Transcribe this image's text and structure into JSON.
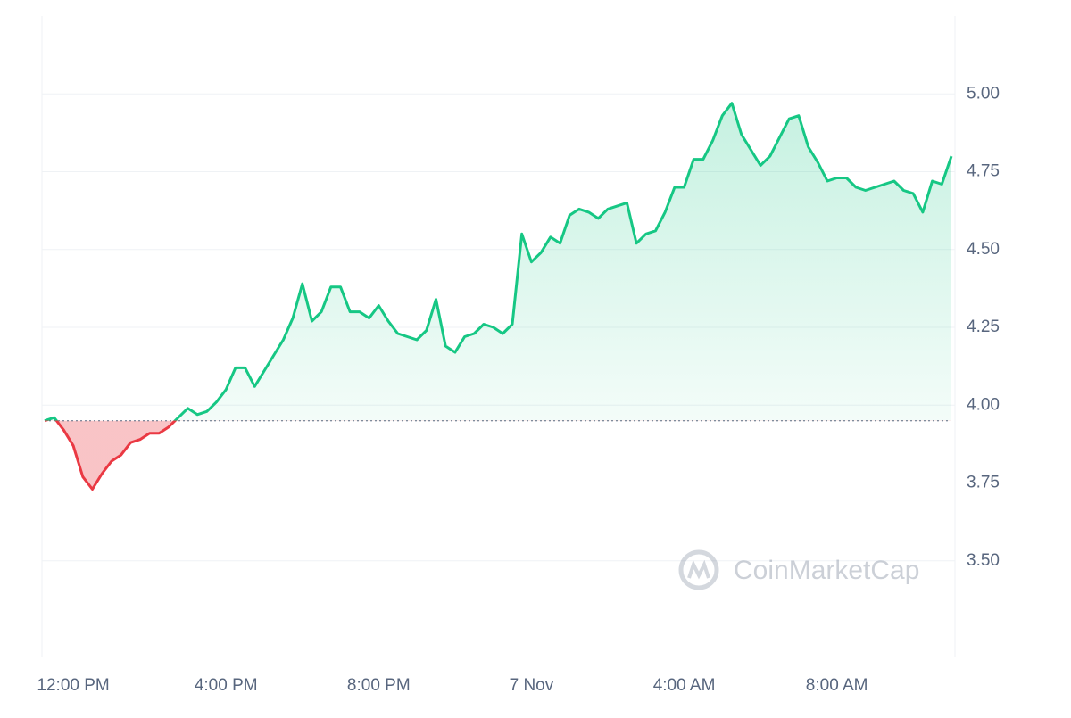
{
  "chart_data": {
    "type": "line",
    "watermark": "CoinMarketCap",
    "categories": [
      null,
      null,
      null,
      "12:00 PM",
      null,
      null,
      null,
      null,
      null,
      null,
      null,
      null,
      null,
      null,
      null,
      null,
      null,
      null,
      null,
      "4:00 PM",
      null,
      null,
      null,
      null,
      null,
      null,
      null,
      null,
      null,
      null,
      null,
      null,
      null,
      null,
      null,
      "8:00 PM",
      null,
      null,
      null,
      null,
      null,
      null,
      null,
      null,
      null,
      null,
      null,
      null,
      null,
      null,
      null,
      "7 Nov",
      null,
      null,
      null,
      null,
      null,
      null,
      null,
      null,
      null,
      null,
      null,
      null,
      null,
      null,
      null,
      "4:00 AM",
      null,
      null,
      null,
      null,
      null,
      null,
      null,
      null,
      null,
      null,
      null,
      null,
      null,
      null,
      null,
      "8:00 AM",
      null,
      null,
      null,
      null,
      null,
      null,
      null,
      null,
      null,
      null,
      null,
      null
    ],
    "values": [
      3.95,
      3.96,
      3.92,
      3.87,
      3.77,
      3.73,
      3.78,
      3.82,
      3.84,
      3.88,
      3.89,
      3.91,
      3.91,
      3.93,
      3.96,
      3.99,
      3.97,
      3.98,
      4.01,
      4.05,
      4.12,
      4.12,
      4.06,
      4.11,
      4.16,
      4.21,
      4.28,
      4.39,
      4.27,
      4.3,
      4.38,
      4.38,
      4.3,
      4.3,
      4.28,
      4.32,
      4.27,
      4.23,
      4.22,
      4.21,
      4.24,
      4.34,
      4.19,
      4.17,
      4.22,
      4.23,
      4.26,
      4.25,
      4.23,
      4.26,
      4.55,
      4.46,
      4.49,
      4.54,
      4.52,
      4.61,
      4.63,
      4.62,
      4.6,
      4.63,
      4.64,
      4.65,
      4.52,
      4.55,
      4.56,
      4.62,
      4.7,
      4.7,
      4.79,
      4.79,
      4.85,
      4.93,
      4.97,
      4.87,
      4.82,
      4.77,
      4.8,
      4.86,
      4.92,
      4.93,
      4.83,
      4.78,
      4.72,
      4.73,
      4.73,
      4.7,
      4.69,
      4.7,
      4.71,
      4.72,
      4.69,
      4.68,
      4.62,
      4.72,
      4.71,
      4.8
    ],
    "up_color": "#16c784",
    "down_color": "#ea3943",
    "ylim": [
      3.19,
      5.25
    ],
    "yticks": [
      {
        "value": 3.5,
        "label": "3.50"
      },
      {
        "value": 3.75,
        "label": "3.75"
      },
      {
        "value": 4.0,
        "label": "4.00"
      },
      {
        "value": 4.25,
        "label": "4.25"
      },
      {
        "value": 4.5,
        "label": "4.50"
      },
      {
        "value": 4.75,
        "label": "4.75"
      },
      {
        "value": 5.0,
        "label": "5.00"
      }
    ],
    "grid": true
  }
}
